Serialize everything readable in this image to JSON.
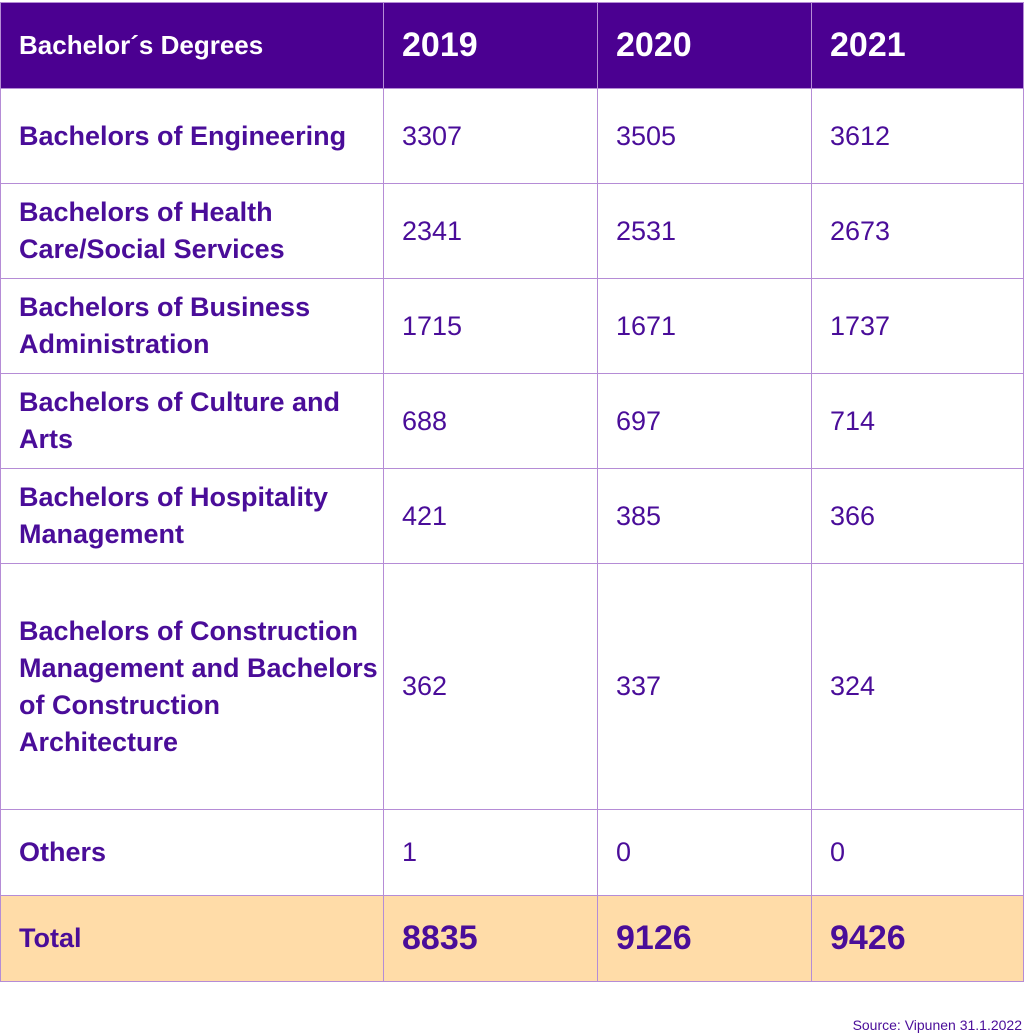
{
  "chart_data": {
    "type": "table",
    "columns": [
      "Bachelor´s Degrees",
      "2019",
      "2020",
      "2021"
    ],
    "rows": [
      {
        "label": "Bachelors of Engineering",
        "values": [
          3307,
          3505,
          3612
        ]
      },
      {
        "label": "Bachelors of Health Care/Social Services",
        "values": [
          2341,
          2531,
          2673
        ]
      },
      {
        "label": "Bachelors of Business Administration",
        "values": [
          1715,
          1671,
          1737
        ]
      },
      {
        "label": "Bachelors of Culture and Arts",
        "values": [
          688,
          697,
          714
        ]
      },
      {
        "label": "Bachelors of Hospitality Management",
        "values": [
          421,
          385,
          366
        ]
      },
      {
        "label": "Bachelors of Construction Management and Bachelors of Construction Architecture",
        "values": [
          362,
          337,
          324
        ]
      },
      {
        "label": "Others",
        "values": [
          1,
          0,
          0
        ]
      }
    ],
    "total": {
      "label": "Total",
      "values": [
        8835,
        9126,
        9426
      ]
    },
    "source": "Source: Vipunen 31.1.2022",
    "colors": {
      "header_bg": "#4b0091",
      "header_text": "#ffffff",
      "text": "#4a0d99",
      "border": "#b58cd6",
      "total_bg": "#ffdca8"
    }
  }
}
